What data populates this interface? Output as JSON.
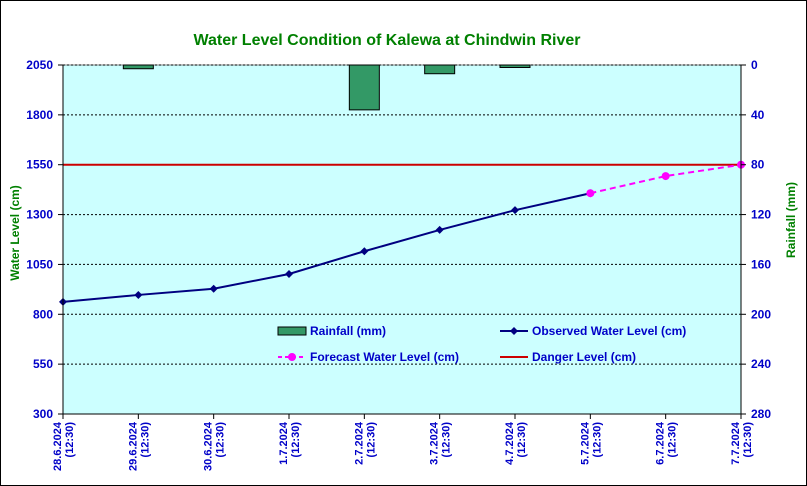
{
  "chart_data": {
    "type": "line",
    "title": "Water Level Condition of Kalewa at Chindwin River",
    "ylabel_left": "Water Level (cm)",
    "ylabel_right": "Rainfall (mm)",
    "ylim_left": [
      300,
      2050
    ],
    "yticks_left": [
      "2050",
      "1800",
      "1550",
      "1300",
      "1050",
      "800",
      "550",
      "300"
    ],
    "ylim_right": [
      0,
      280
    ],
    "yticks_right": [
      "0",
      "40",
      "80",
      "120",
      "160",
      "200",
      "240",
      "280"
    ],
    "right_axis_inverted": true,
    "grid": "dashed horizontal",
    "categories": [
      [
        "28.6.2024",
        "(12:30)"
      ],
      [
        "29.6.2024",
        "(12:30)"
      ],
      [
        "30.6.2024",
        "(12:30)"
      ],
      [
        "1.7.2024",
        "(12:30)"
      ],
      [
        "2.7.2024",
        "(12:30)"
      ],
      [
        "3.7.2024",
        "(12:30)"
      ],
      [
        "4.7.2024",
        "(12:30)"
      ],
      [
        "5.7.2024",
        "(12:30)"
      ],
      [
        "6.7.2024",
        "(12:30)"
      ],
      [
        "7.7.2024",
        "(12:30)"
      ]
    ],
    "series": [
      {
        "name": "Rainfall (mm)",
        "type": "bar",
        "axis": "right",
        "color": "#339966",
        "values": [
          null,
          3,
          null,
          null,
          36,
          7,
          2,
          null,
          null,
          null
        ]
      },
      {
        "name": "Observed Water Level (cm)",
        "type": "line",
        "axis": "left",
        "color": "#000080",
        "marker": "diamond",
        "points": [
          [
            0,
            862
          ],
          [
            1,
            897
          ],
          [
            2,
            928
          ],
          [
            3,
            1002
          ],
          [
            4,
            1116
          ],
          [
            5,
            1223
          ],
          [
            6,
            1322
          ],
          [
            7,
            1407
          ]
        ]
      },
      {
        "name": "Forecast Water Level (cm)",
        "type": "line",
        "axis": "left",
        "color": "#ff00ff",
        "dashed": true,
        "marker": "circle",
        "points": [
          [
            7,
            1407
          ],
          [
            8,
            1493
          ],
          [
            9,
            1550
          ]
        ]
      },
      {
        "name": "Danger Level (cm)",
        "type": "hline",
        "axis": "left",
        "color": "#cc0000",
        "value": 1550
      }
    ],
    "legend_placement": "inside-bottom"
  }
}
